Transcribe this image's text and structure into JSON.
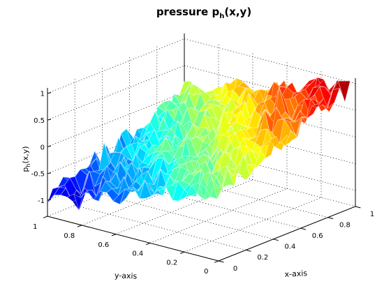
{
  "chart_data": {
    "type": "surface3d",
    "title": {
      "base": "pressure p",
      "sub": "h",
      "suffix": "(x,y)"
    },
    "xlabel": "x-axis",
    "ylabel": "y-axis",
    "zlabel": {
      "base": "p",
      "sub": "h",
      "suffix": "(x,y)"
    },
    "xlim": [
      0,
      1
    ],
    "ylim": [
      0,
      1
    ],
    "zlim": [
      -1.3,
      1.1
    ],
    "xticks": [
      0,
      0.2,
      0.4,
      0.6,
      0.8,
      1
    ],
    "xtick_labels": [
      "0",
      "0.2",
      "0.4",
      "0.6",
      "0.8",
      "1"
    ],
    "yticks": [
      0,
      0.2,
      0.4,
      0.6,
      0.8,
      1
    ],
    "ytick_labels": [
      "0",
      "0.2",
      "0.4",
      "0.6",
      "0.8",
      "1"
    ],
    "zticks": [
      -1,
      -0.5,
      0,
      0.5,
      1
    ],
    "ztick_labels": [
      "-1",
      "-0.5",
      "0",
      "0.5",
      "1"
    ],
    "grid": true,
    "colormap": "jet",
    "surface_samples": {
      "x": [
        0,
        0.5,
        1
      ],
      "y": [
        0,
        0.5,
        1
      ],
      "z": [
        [
          -0.05,
          0.45,
          1.0
        ],
        [
          -0.5,
          0.0,
          0.5
        ],
        [
          -1.0,
          -0.5,
          0.05
        ]
      ],
      "note_rows": "rows indexed by y (0 to 1), columns by x (0 to 1)"
    }
  }
}
